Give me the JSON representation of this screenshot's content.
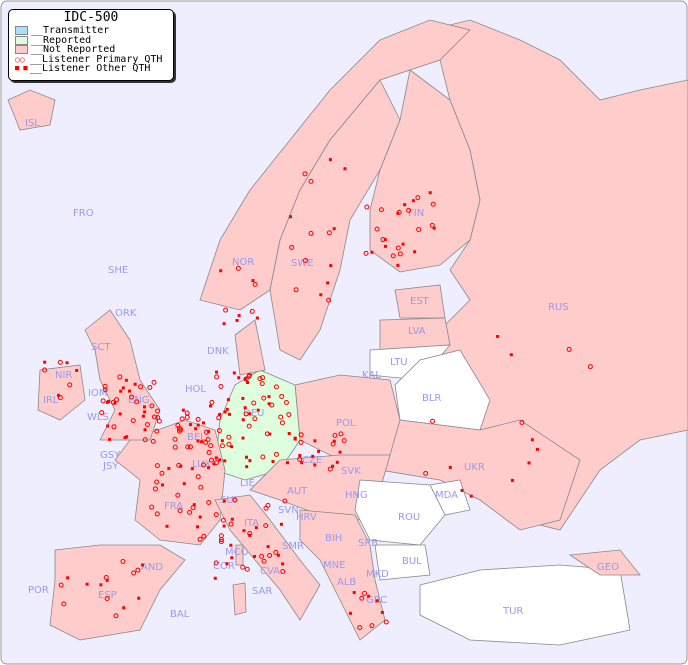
{
  "title": "IDC-500",
  "legend": [
    {
      "label": "__Transmitter",
      "color": "#aaddff"
    },
    {
      "label": "__Reported",
      "color": "#ddffdd"
    },
    {
      "label": "__Not Reported",
      "color": "#ffcccc"
    },
    {
      "label": "__Listener Primary QTH",
      "icon": "open-circle-marker"
    },
    {
      "label": "__Listener Other QTH",
      "icon": "filled-square-marker"
    }
  ],
  "colors": {
    "sea": "#eeeeff",
    "not_reported": "#ffcccc",
    "reported": "#ddffdd",
    "no_data": "#ffffff",
    "marker": "#ff0000",
    "label": "#9999ee"
  },
  "countries": [
    "ISL",
    "FRO",
    "SHE",
    "ORK",
    "NOR",
    "SWE",
    "FIN",
    "EST",
    "LVA",
    "LTU",
    "KAL",
    "BLR",
    "RUS",
    "DNK",
    "HOL",
    "DEU",
    "POL",
    "BEL",
    "LUX",
    "CZE",
    "SVK",
    "UKR",
    "MDA",
    "IRL",
    "NIR",
    "IOM",
    "WLS",
    "ENG",
    "SCT",
    "GSY",
    "JSY",
    "FRA",
    "SUI",
    "LIE",
    "AUT",
    "HNG",
    "SVN",
    "HRV",
    "ROU",
    "ITA",
    "BIH",
    "SRB",
    "MNE",
    "ALB",
    "MKD",
    "BUL",
    "GRC",
    "TUR",
    "GEO",
    "SMR",
    "CVA",
    "MCO",
    "COR",
    "SAR",
    "AND",
    "POR",
    "ESP",
    "BAL"
  ]
}
